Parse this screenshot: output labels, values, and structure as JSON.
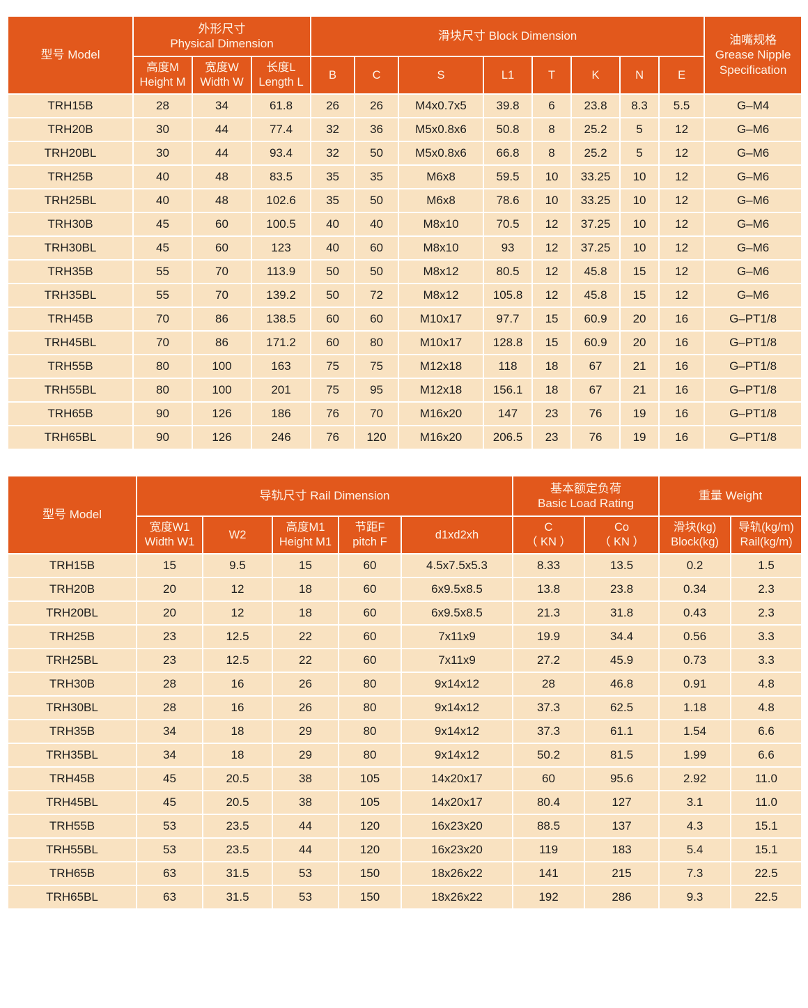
{
  "colors": {
    "header_bg": "#e2581c",
    "row_bg": "#f9e2c1",
    "divider": "#ffffff",
    "header_text": "#fdf3e7",
    "body_text": "#1d1d1d"
  },
  "table1": {
    "model_header": "型号 Model",
    "group_physical": "外形尺寸\nPhysical Dimension",
    "group_block": "滑块尺寸 Block Dimension",
    "grease_header": "油嘴规格\nGrease Nipple\nSpecification",
    "sub_height": "高度M\nHeight M",
    "sub_width": "宽度W\nWidth W",
    "sub_length": "长度L\nLength L",
    "sub_b": "B",
    "sub_c": "C",
    "sub_s": "S",
    "sub_l1": "L1",
    "sub_t": "T",
    "sub_k": "K",
    "sub_n": "N",
    "sub_e": "E",
    "rows": [
      [
        "TRH15B",
        "28",
        "34",
        "61.8",
        "26",
        "26",
        "M4x0.7x5",
        "39.8",
        "6",
        "23.8",
        "8.3",
        "5.5",
        "G–M4"
      ],
      [
        "TRH20B",
        "30",
        "44",
        "77.4",
        "32",
        "36",
        "M5x0.8x6",
        "50.8",
        "8",
        "25.2",
        "5",
        "12",
        "G–M6"
      ],
      [
        "TRH20BL",
        "30",
        "44",
        "93.4",
        "32",
        "50",
        "M5x0.8x6",
        "66.8",
        "8",
        "25.2",
        "5",
        "12",
        "G–M6"
      ],
      [
        "TRH25B",
        "40",
        "48",
        "83.5",
        "35",
        "35",
        "M6x8",
        "59.5",
        "10",
        "33.25",
        "10",
        "12",
        "G–M6"
      ],
      [
        "TRH25BL",
        "40",
        "48",
        "102.6",
        "35",
        "50",
        "M6x8",
        "78.6",
        "10",
        "33.25",
        "10",
        "12",
        "G–M6"
      ],
      [
        "TRH30B",
        "45",
        "60",
        "100.5",
        "40",
        "40",
        "M8x10",
        "70.5",
        "12",
        "37.25",
        "10",
        "12",
        "G–M6"
      ],
      [
        "TRH30BL",
        "45",
        "60",
        "123",
        "40",
        "60",
        "M8x10",
        "93",
        "12",
        "37.25",
        "10",
        "12",
        "G–M6"
      ],
      [
        "TRH35B",
        "55",
        "70",
        "113.9",
        "50",
        "50",
        "M8x12",
        "80.5",
        "12",
        "45.8",
        "15",
        "12",
        "G–M6"
      ],
      [
        "TRH35BL",
        "55",
        "70",
        "139.2",
        "50",
        "72",
        "M8x12",
        "105.8",
        "12",
        "45.8",
        "15",
        "12",
        "G–M6"
      ],
      [
        "TRH45B",
        "70",
        "86",
        "138.5",
        "60",
        "60",
        "M10x17",
        "97.7",
        "15",
        "60.9",
        "20",
        "16",
        "G–PT1/8"
      ],
      [
        "TRH45BL",
        "70",
        "86",
        "171.2",
        "60",
        "80",
        "M10x17",
        "128.8",
        "15",
        "60.9",
        "20",
        "16",
        "G–PT1/8"
      ],
      [
        "TRH55B",
        "80",
        "100",
        "163",
        "75",
        "75",
        "M12x18",
        "118",
        "18",
        "67",
        "21",
        "16",
        "G–PT1/8"
      ],
      [
        "TRH55BL",
        "80",
        "100",
        "201",
        "75",
        "95",
        "M12x18",
        "156.1",
        "18",
        "67",
        "21",
        "16",
        "G–PT1/8"
      ],
      [
        "TRH65B",
        "90",
        "126",
        "186",
        "76",
        "70",
        "M16x20",
        "147",
        "23",
        "76",
        "19",
        "16",
        "G–PT1/8"
      ],
      [
        "TRH65BL",
        "90",
        "126",
        "246",
        "76",
        "120",
        "M16x20",
        "206.5",
        "23",
        "76",
        "19",
        "16",
        "G–PT1/8"
      ]
    ]
  },
  "table2": {
    "model_header": "型号 Model",
    "group_rail": "导轨尺寸 Rail Dimension",
    "group_load": "基本额定负荷\nBasic Load Rating",
    "group_weight": "重量 Weight",
    "sub_w1": "宽度W1\nWidth W1",
    "sub_w2": "W2",
    "sub_m1": "高度M1\nHeight M1",
    "sub_f": "节距F\npitch F",
    "sub_d": "d1xd2xh",
    "sub_c": "C\n（ KN ）",
    "sub_co": "Co\n（ KN ）",
    "sub_block": "滑块(kg)\nBlock(kg)",
    "sub_rail": "导轨(kg/m)\nRail(kg/m)",
    "rows": [
      [
        "TRH15B",
        "15",
        "9.5",
        "15",
        "60",
        "4.5x7.5x5.3",
        "8.33",
        "13.5",
        "0.2",
        "1.5"
      ],
      [
        "TRH20B",
        "20",
        "12",
        "18",
        "60",
        "6x9.5x8.5",
        "13.8",
        "23.8",
        "0.34",
        "2.3"
      ],
      [
        "TRH20BL",
        "20",
        "12",
        "18",
        "60",
        "6x9.5x8.5",
        "21.3",
        "31.8",
        "0.43",
        "2.3"
      ],
      [
        "TRH25B",
        "23",
        "12.5",
        "22",
        "60",
        "7x11x9",
        "19.9",
        "34.4",
        "0.56",
        "3.3"
      ],
      [
        "TRH25BL",
        "23",
        "12.5",
        "22",
        "60",
        "7x11x9",
        "27.2",
        "45.9",
        "0.73",
        "3.3"
      ],
      [
        "TRH30B",
        "28",
        "16",
        "26",
        "80",
        "9x14x12",
        "28",
        "46.8",
        "0.91",
        "4.8"
      ],
      [
        "TRH30BL",
        "28",
        "16",
        "26",
        "80",
        "9x14x12",
        "37.3",
        "62.5",
        "1.18",
        "4.8"
      ],
      [
        "TRH35B",
        "34",
        "18",
        "29",
        "80",
        "9x14x12",
        "37.3",
        "61.1",
        "1.54",
        "6.6"
      ],
      [
        "TRH35BL",
        "34",
        "18",
        "29",
        "80",
        "9x14x12",
        "50.2",
        "81.5",
        "1.99",
        "6.6"
      ],
      [
        "TRH45B",
        "45",
        "20.5",
        "38",
        "105",
        "14x20x17",
        "60",
        "95.6",
        "2.92",
        "11.0"
      ],
      [
        "TRH45BL",
        "45",
        "20.5",
        "38",
        "105",
        "14x20x17",
        "80.4",
        "127",
        "3.1",
        "11.0"
      ],
      [
        "TRH55B",
        "53",
        "23.5",
        "44",
        "120",
        "16x23x20",
        "88.5",
        "137",
        "4.3",
        "15.1"
      ],
      [
        "TRH55BL",
        "53",
        "23.5",
        "44",
        "120",
        "16x23x20",
        "119",
        "183",
        "5.4",
        "15.1"
      ],
      [
        "TRH65B",
        "63",
        "31.5",
        "53",
        "150",
        "18x26x22",
        "141",
        "215",
        "7.3",
        "22.5"
      ],
      [
        "TRH65BL",
        "63",
        "31.5",
        "53",
        "150",
        "18x26x22",
        "192",
        "286",
        "9.3",
        "22.5"
      ]
    ]
  }
}
